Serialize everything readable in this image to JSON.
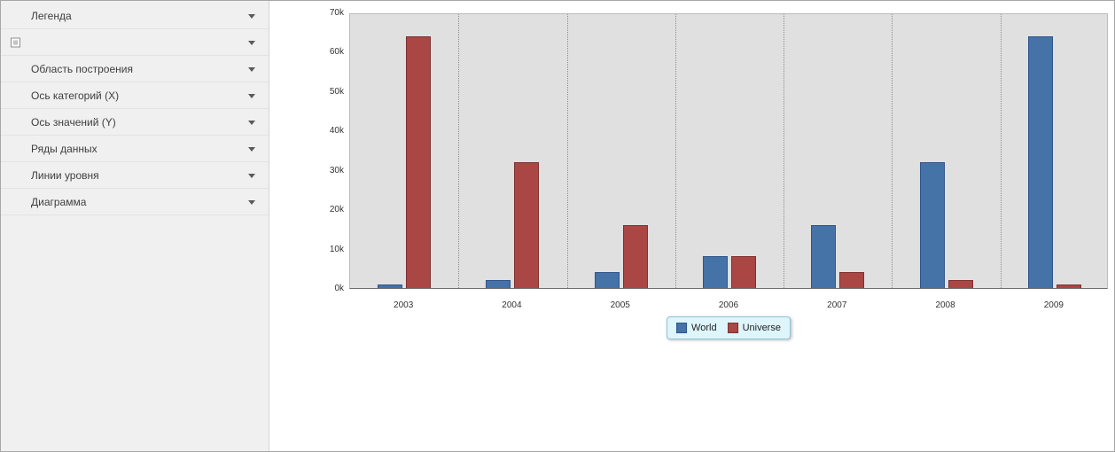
{
  "sidebar": {
    "items": [
      {
        "key": "legend",
        "label": "Легенда",
        "box_icon": false
      },
      {
        "key": "unnamed-panel",
        "label": "",
        "box_icon": true
      },
      {
        "key": "plot-area",
        "label": "Область построения",
        "box_icon": false
      },
      {
        "key": "x-axis",
        "label": "Ось категорий (X)",
        "box_icon": false
      },
      {
        "key": "y-axis",
        "label": "Ось значений (Y)",
        "box_icon": false
      },
      {
        "key": "series",
        "label": "Ряды данных",
        "box_icon": false
      },
      {
        "key": "level-lines",
        "label": "Линии уровня",
        "box_icon": false
      },
      {
        "key": "chart",
        "label": "Диаграмма",
        "box_icon": false
      }
    ]
  },
  "chart_data": {
    "type": "bar",
    "categories": [
      "2003",
      "2004",
      "2005",
      "2006",
      "2007",
      "2008",
      "2009"
    ],
    "series": [
      {
        "name": "World",
        "color": "#4572a7",
        "border_color": "#30558a",
        "values": [
          1000,
          2000,
          4000,
          8000,
          16000,
          32000,
          64000
        ]
      },
      {
        "name": "Universe",
        "color": "#aa4643",
        "border_color": "#7c3230",
        "values": [
          64000,
          32000,
          16000,
          8000,
          4000,
          2000,
          1000
        ]
      }
    ],
    "title": "",
    "xlabel": "",
    "ylabel": "",
    "ylim": [
      0,
      70000
    ],
    "ytick_step": 10000,
    "ytick_labels": [
      "0k",
      "10k",
      "20k",
      "30k",
      "40k",
      "50k",
      "60k",
      "70k"
    ],
    "grid": "vertical-dotted",
    "legend_position": "bottom",
    "plot_background": "#e0e0e0"
  },
  "legend": {
    "entries": [
      "World",
      "Universe"
    ],
    "background": "#ddf5fb",
    "border": "#8fc3d8"
  }
}
